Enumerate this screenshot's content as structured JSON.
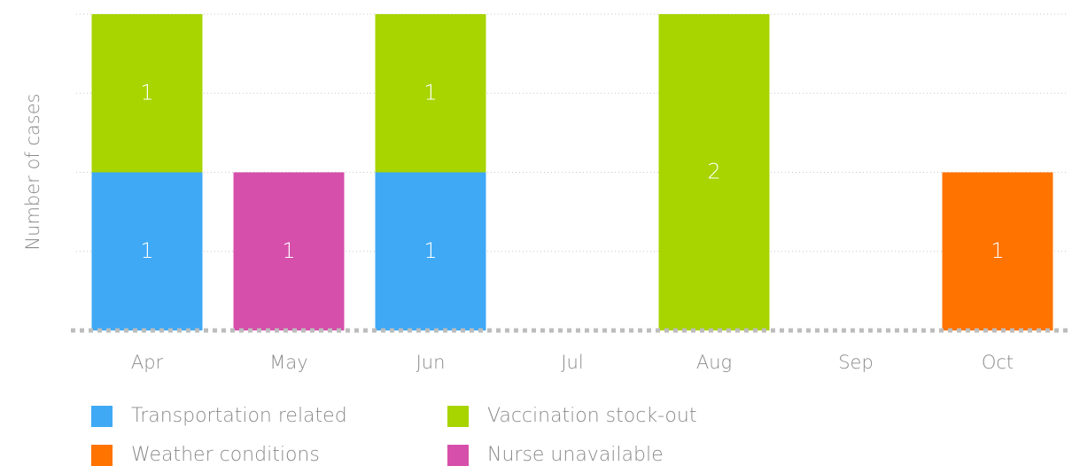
{
  "chart_data": {
    "type": "stacked_bar",
    "y_label": "Number of cases",
    "categories": [
      "Apr",
      "May",
      "Jun",
      "Jul",
      "Aug",
      "Sep",
      "Oct"
    ],
    "series": [
      {
        "name": "Transportation related",
        "color": "#3fa9f5",
        "values": [
          1,
          0,
          1,
          0,
          0,
          0,
          0
        ]
      },
      {
        "name": "Vaccination stock-out",
        "color": "#a8d400",
        "values": [
          1,
          0,
          1,
          0,
          2,
          0,
          0
        ]
      },
      {
        "name": "Weather conditions",
        "color": "#ff7300",
        "values": [
          0,
          0,
          0,
          0,
          0,
          0,
          1
        ]
      },
      {
        "name": "Nurse unavailable",
        "color": "#d64fab",
        "values": [
          0,
          1,
          0,
          0,
          0,
          0,
          0
        ]
      }
    ],
    "ylim": [
      0,
      2
    ],
    "yticks": [
      0,
      0.5,
      1,
      1.5,
      2
    ],
    "grid": true,
    "legend": "bottom"
  }
}
